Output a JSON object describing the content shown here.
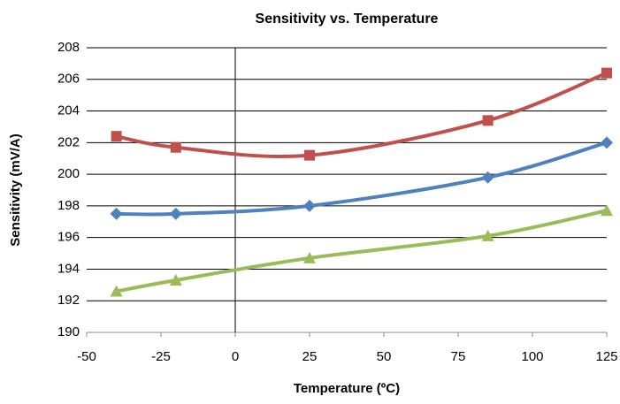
{
  "chart_data": {
    "type": "line",
    "title": "Sensitivity vs. Temperature",
    "x_label": "Temperature (ºC)",
    "y_label": "Sensitivity (mV/A)",
    "x": [
      -40,
      -20,
      25,
      85,
      125
    ],
    "series": [
      {
        "color": "#c0504d",
        "marker": "square",
        "values": [
          202.4,
          201.7,
          201.2,
          203.4,
          206.4
        ]
      },
      {
        "color": "#4f81bd",
        "marker": "diamond",
        "values": [
          197.5,
          197.5,
          198.0,
          199.8,
          202.0
        ]
      },
      {
        "color": "#9bbb59",
        "marker": "triangle",
        "values": [
          192.6,
          193.3,
          194.7,
          196.1,
          197.7
        ]
      }
    ],
    "xlim": [
      -50,
      125
    ],
    "xticks": [
      -50,
      -25,
      0,
      25,
      50,
      75,
      100,
      125
    ],
    "ylim": [
      190,
      208
    ],
    "yticks": [
      190,
      192,
      194,
      196,
      198,
      200,
      202,
      204,
      206,
      208
    ],
    "grid": true,
    "yaxis_crosses": 0,
    "smooth": true
  }
}
